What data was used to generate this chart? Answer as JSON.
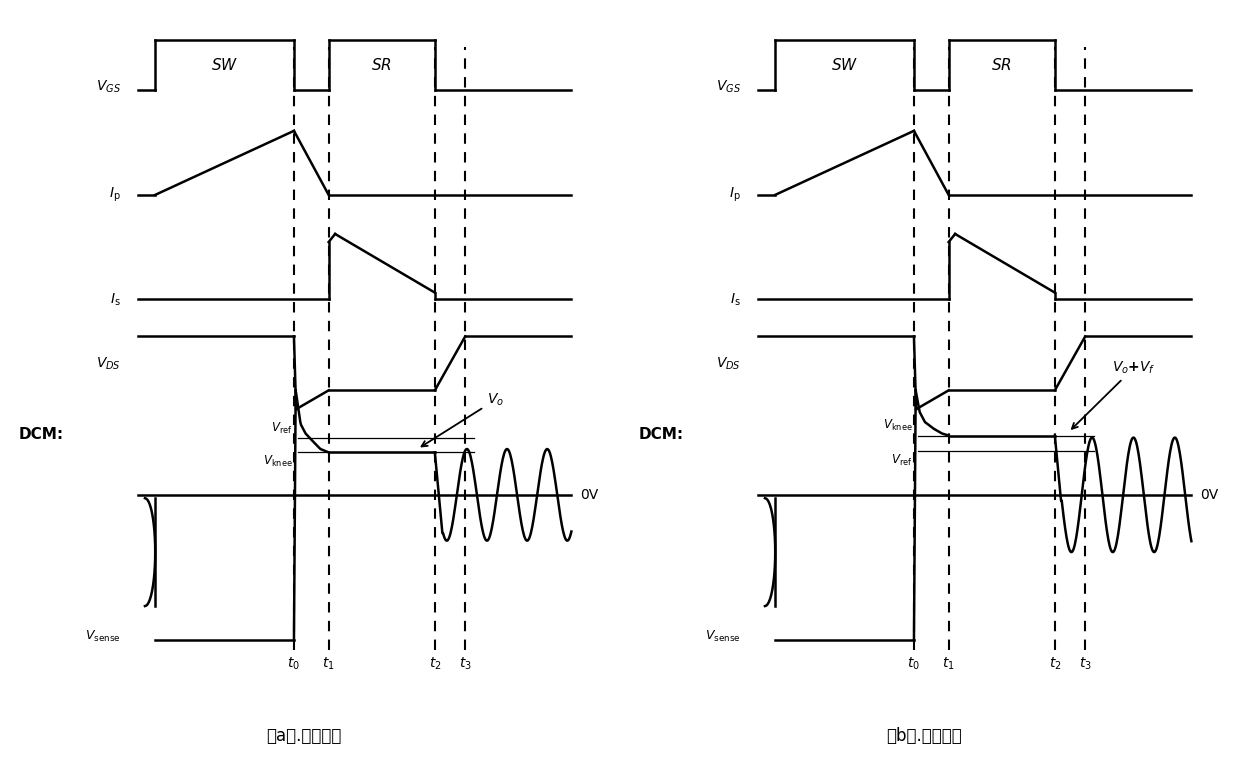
{
  "fig_width": 12.4,
  "fig_height": 7.66,
  "lw": 1.8,
  "dlw": 1.5,
  "subtitle_a": "（a）.理想情况",
  "subtitle_b": "（b）.实际情况",
  "label_VGS": "$V_{GS}$",
  "label_Ip": "$I_{\\mathrm{p}}$",
  "label_Is": "$I_{\\mathrm{s}}$",
  "label_VDS": "$V_{DS}$",
  "label_DCM": "DCM:",
  "label_Vsense": "$V_{\\mathrm{sense}}$",
  "label_0V": "0V",
  "label_SW": "$SW$",
  "label_SR": "$SR$",
  "label_Vo": "$V_o$",
  "label_VoVf": "$\\boldsymbol{V_o}$+$\\boldsymbol{V_f}$",
  "label_Vref_a": "$V_{\\mathrm{ref}}$",
  "label_Vknee_a": "$V_{\\mathrm{knee}}$",
  "label_Vknee_b": "$V_{\\mathrm{knee}}$",
  "label_Vref_b": "$V_{\\mathrm{ref}}$",
  "t0": 0.36,
  "t1": 0.44,
  "t2": 0.685,
  "t3": 0.755
}
